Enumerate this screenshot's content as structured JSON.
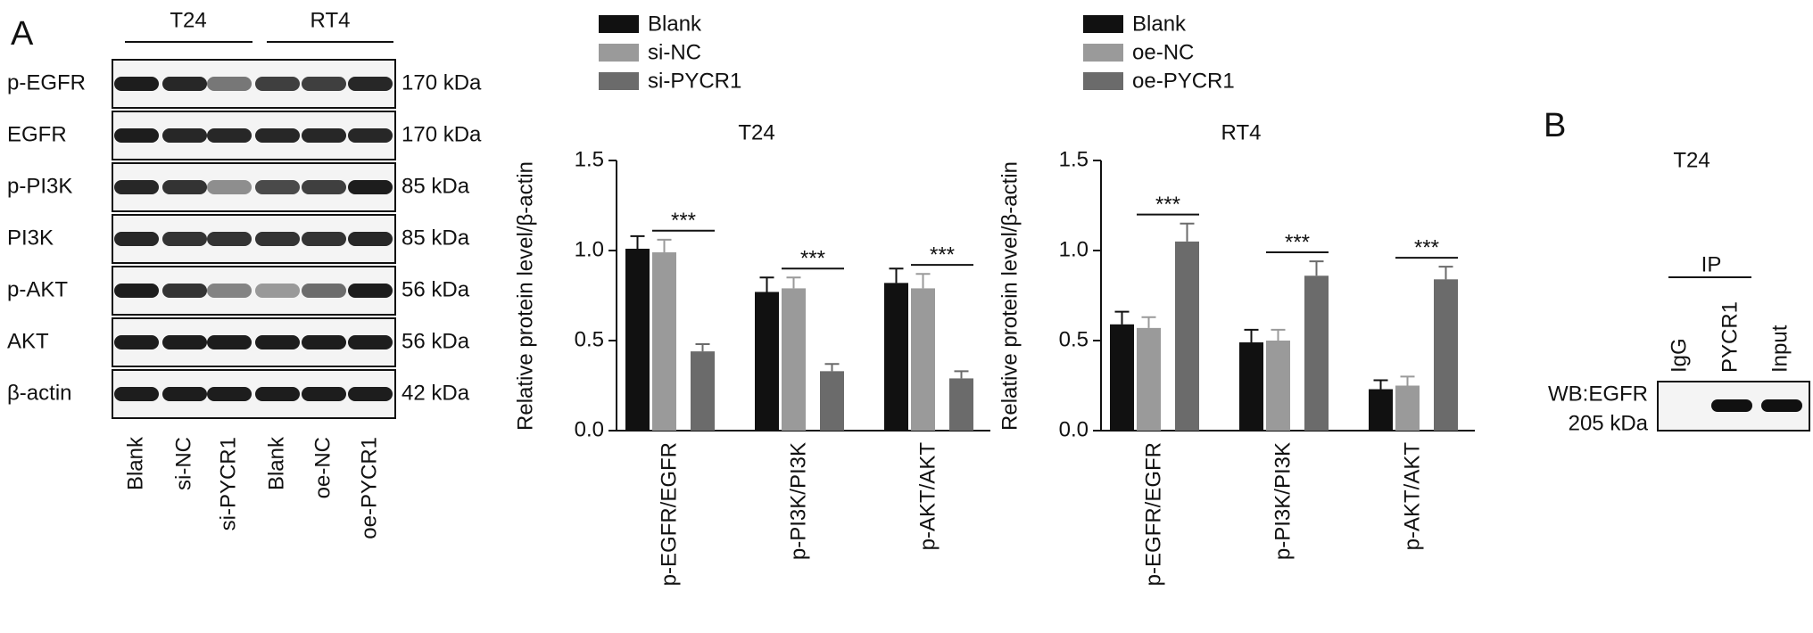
{
  "panel_a": {
    "label": "A",
    "groups": [
      "T24",
      "RT4"
    ],
    "lanes": [
      "Blank",
      "si-NC",
      "si-PYCR1",
      "Blank",
      "oe-NC",
      "oe-PYCR1"
    ],
    "rows": [
      {
        "protein": "p-EGFR",
        "size": "170 kDa"
      },
      {
        "protein": "EGFR",
        "size": "170 kDa"
      },
      {
        "protein": "p-PI3K",
        "size": "85 kDa"
      },
      {
        "protein": "PI3K",
        "size": "85 kDa"
      },
      {
        "protein": "p-AKT",
        "size": "56 kDa"
      },
      {
        "protein": "AKT",
        "size": "56 kDa"
      },
      {
        "protein": "β-actin",
        "size": "42 kDa"
      }
    ]
  },
  "chart_data": [
    {
      "type": "bar",
      "title": "T24",
      "y_label": "Relative protein level/β-actin",
      "categories": [
        "p-EGFR/EGFR",
        "p-PI3K/PI3K",
        "p-AKT/AKT"
      ],
      "series": [
        {
          "name": "Blank",
          "color": "#111111",
          "values": [
            1.01,
            0.77,
            0.82
          ],
          "errors": [
            0.07,
            0.08,
            0.08
          ]
        },
        {
          "name": "si-NC",
          "color": "#9a9a9a",
          "values": [
            0.99,
            0.79,
            0.79
          ],
          "errors": [
            0.07,
            0.06,
            0.08
          ]
        },
        {
          "name": "si-PYCR1",
          "color": "#6b6b6b",
          "values": [
            0.44,
            0.33,
            0.29
          ],
          "errors": [
            0.04,
            0.04,
            0.04
          ]
        }
      ],
      "annotations": [
        "***",
        "***",
        "***"
      ],
      "ylim": [
        0,
        1.5
      ],
      "yticks": [
        {
          "value": 0,
          "label": "0.0"
        },
        {
          "value": 0.5,
          "label": "0.5"
        },
        {
          "value": 1,
          "label": "1.0"
        },
        {
          "value": 1.5,
          "label": "1.5"
        }
      ]
    },
    {
      "type": "bar",
      "title": "RT4",
      "y_label": "Relative protein level/β-actin",
      "categories": [
        "p-EGFR/EGFR",
        "p-PI3K/PI3K",
        "p-AKT/AKT"
      ],
      "series": [
        {
          "name": "Blank",
          "color": "#111111",
          "values": [
            0.59,
            0.49,
            0.23
          ],
          "errors": [
            0.07,
            0.07,
            0.05
          ]
        },
        {
          "name": "oe-NC",
          "color": "#9a9a9a",
          "values": [
            0.57,
            0.5,
            0.25
          ],
          "errors": [
            0.06,
            0.06,
            0.05
          ]
        },
        {
          "name": "oe-PYCR1",
          "color": "#6b6b6b",
          "values": [
            1.05,
            0.86,
            0.84
          ],
          "errors": [
            0.1,
            0.08,
            0.07
          ]
        }
      ],
      "annotations": [
        "***",
        "***",
        "***"
      ],
      "ylim": [
        0,
        1.5
      ],
      "yticks": [
        {
          "value": 0,
          "label": "0.0"
        },
        {
          "value": 0.5,
          "label": "0.5"
        },
        {
          "value": 1,
          "label": "1.0"
        },
        {
          "value": 1.5,
          "label": "1.5"
        }
      ]
    }
  ],
  "panel_b": {
    "label": "B",
    "title": "T24",
    "ip_label": "IP",
    "lanes": [
      "IgG",
      "PYCR1",
      "Input"
    ],
    "blot": "WB:EGFR",
    "size": "205 kDa"
  }
}
